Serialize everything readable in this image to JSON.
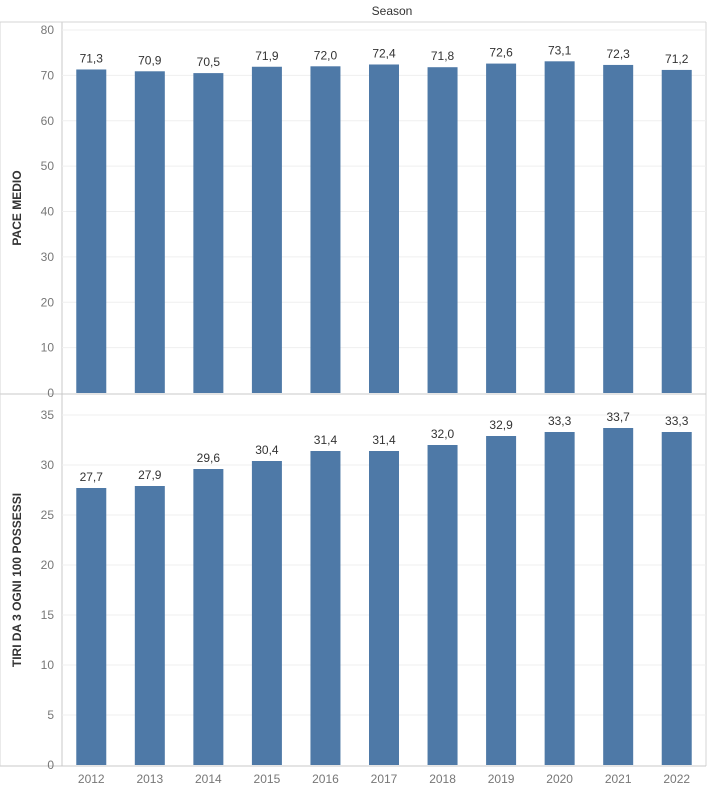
{
  "header": {
    "title": "Season"
  },
  "colors": {
    "bar": "#4e79a7",
    "grid": "#efefef",
    "axis": "#c8c8c8",
    "panel_border": "#d4d4d4"
  },
  "chart_data": [
    {
      "type": "bar",
      "categories": [
        "2012",
        "2013",
        "2014",
        "2015",
        "2016",
        "2017",
        "2018",
        "2019",
        "2020",
        "2021",
        "2022"
      ],
      "values": [
        71.3,
        70.9,
        70.5,
        71.9,
        72.0,
        72.4,
        71.8,
        72.6,
        73.1,
        72.3,
        71.2
      ],
      "value_labels": [
        "71,3",
        "70,9",
        "70,5",
        "71,9",
        "72,0",
        "72,4",
        "71,8",
        "72,6",
        "73,1",
        "72,3",
        "71,2"
      ],
      "title": "Season",
      "xlabel": "",
      "ylabel": "PACE MEDIO",
      "ylim": [
        0,
        80
      ],
      "yticks": [
        0,
        10,
        20,
        30,
        40,
        50,
        60,
        70,
        80
      ],
      "grid": true
    },
    {
      "type": "bar",
      "categories": [
        "2012",
        "2013",
        "2014",
        "2015",
        "2016",
        "2017",
        "2018",
        "2019",
        "2020",
        "2021",
        "2022"
      ],
      "values": [
        27.7,
        27.9,
        29.6,
        30.4,
        31.4,
        31.4,
        32.0,
        32.9,
        33.3,
        33.7,
        33.3
      ],
      "value_labels": [
        "27,7",
        "27,9",
        "29,6",
        "30,4",
        "31,4",
        "31,4",
        "32,0",
        "32,9",
        "33,3",
        "33,7",
        "33,3"
      ],
      "xlabel": "",
      "ylabel": "TIRI DA 3 OGNI 100 POSSESSI",
      "ylim": [
        0,
        35
      ],
      "yticks": [
        0,
        5,
        10,
        15,
        20,
        25,
        30,
        35
      ],
      "grid": true
    }
  ]
}
